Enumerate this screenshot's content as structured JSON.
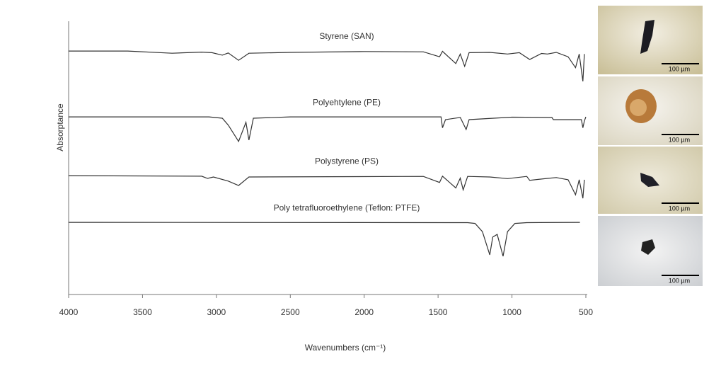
{
  "chart_data": {
    "type": "line",
    "xlabel": "Wavenumbers (cm⁻¹)",
    "ylabel": "Absorptance",
    "xlim": [
      4000,
      500
    ],
    "ylim": [
      0,
      100
    ],
    "xticks": [
      4000,
      3500,
      3000,
      2500,
      2000,
      1500,
      1000,
      500
    ],
    "series": [
      {
        "name": "Styrene (SAN)",
        "color": "#333333",
        "x": [
          4000,
          3600,
          3300,
          3100,
          3030,
          2960,
          2920,
          2850,
          2780,
          2500,
          2000,
          1600,
          1490,
          1470,
          1380,
          1350,
          1320,
          1290,
          1150,
          1030,
          950,
          880,
          800,
          760,
          700,
          620,
          570,
          545,
          520,
          510
        ],
        "values": [
          89.1,
          89.1,
          88.3,
          88.7,
          88.5,
          87.6,
          88.4,
          85.7,
          88.3,
          88.6,
          88.9,
          88.8,
          87,
          89,
          84.5,
          88,
          83.5,
          88.5,
          88.6,
          88,
          88.5,
          86,
          88.2,
          88,
          88.6,
          87,
          83,
          88,
          78,
          88
        ]
      },
      {
        "name": "Polyehtylene (PE)",
        "color": "#333333",
        "x": [
          4000,
          3050,
          2960,
          2920,
          2850,
          2800,
          2780,
          2750,
          2500,
          1480,
          1470,
          1450,
          1350,
          1310,
          1290,
          1000,
          730,
          720,
          530,
          520,
          510,
          500
        ],
        "values": [
          65,
          65,
          64.5,
          62,
          56,
          63,
          56.5,
          64.5,
          65,
          65,
          61,
          64,
          64.8,
          60.4,
          64,
          64.9,
          64.8,
          64,
          64,
          61,
          63.5,
          65
        ]
      },
      {
        "name": "Polystyrene (PS)",
        "color": "#333333",
        "x": [
          4000,
          3100,
          3060,
          3020,
          2920,
          2850,
          2780,
          1600,
          1490,
          1470,
          1380,
          1350,
          1330,
          1300,
          1150,
          1030,
          900,
          880,
          760,
          700,
          620,
          570,
          545,
          520,
          510
        ],
        "values": [
          43.5,
          43.3,
          42.5,
          43,
          41.5,
          39.9,
          43,
          43.2,
          41,
          43.3,
          39,
          42.6,
          38.3,
          43.2,
          43,
          42.4,
          43.2,
          41.8,
          42.5,
          42.8,
          42,
          36.5,
          42,
          35.2,
          42
        ]
      },
      {
        "name": "Poly tetrafluoroethylene (Teflon: PTFE)",
        "color": "#333333",
        "x": [
          4000,
          1300,
          1250,
          1200,
          1150,
          1130,
          1100,
          1060,
          1030,
          980,
          900,
          540
        ],
        "values": [
          26.4,
          26.3,
          26,
          23,
          14.5,
          21,
          22,
          14,
          23,
          26,
          26.3,
          26.4
        ]
      }
    ]
  },
  "insets": [
    {
      "scale_label": "100 µm"
    },
    {
      "scale_label": "100 µm"
    },
    {
      "scale_label": "100 µm"
    },
    {
      "scale_label": "100 µm"
    }
  ]
}
